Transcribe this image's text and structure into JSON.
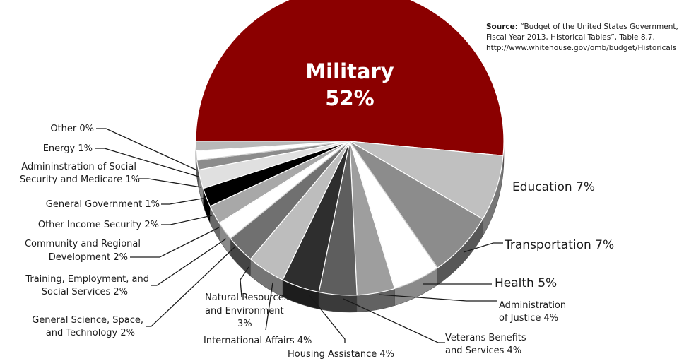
{
  "source": {
    "label": "Source:",
    "line1": "“Budget of the United States Government,",
    "line2": "Fiscal Year 2013, Historical Tables”, Table 8.7.",
    "line3": "http://www.whitehouse.gov/omb/budget/Historicals"
  },
  "chart_data": {
    "type": "pie",
    "title": "",
    "unit": "%",
    "slices": [
      {
        "label": "Military",
        "value": 52,
        "color": "#8b0000"
      },
      {
        "label": "Education",
        "value": 7,
        "color": "#c0c0c0"
      },
      {
        "label": "Transportation",
        "value": 7,
        "color": "#8c8c8c"
      },
      {
        "label": "Health",
        "value": 5,
        "color": "#ffffff"
      },
      {
        "label": "Administration of Justice",
        "value": 4,
        "color": "#9e9e9e"
      },
      {
        "label": "Veterans Benefits and Services",
        "value": 4,
        "color": "#5e5e5e"
      },
      {
        "label": "Housing Assistance",
        "value": 4,
        "color": "#2e2e2e"
      },
      {
        "label": "International Affairs",
        "value": 4,
        "color": "#bdbdbd"
      },
      {
        "label": "Natural Resources and Environment",
        "value": 3,
        "color": "#707070"
      },
      {
        "label": "General Science, Space, and Technology",
        "value": 2,
        "color": "#ffffff"
      },
      {
        "label": "Training, Employment, and Social Services",
        "value": 2,
        "color": "#a8a8a8"
      },
      {
        "label": "Community and Regional Development",
        "value": 2,
        "color": "#000000"
      },
      {
        "label": "Other Income Security",
        "value": 2,
        "color": "#e0e0e0"
      },
      {
        "label": "General Government",
        "value": 1,
        "color": "#8c8c8c"
      },
      {
        "label": "Administration of Social Security and Medicare",
        "value": 1,
        "color": "#ffffff"
      },
      {
        "label": "Energy",
        "value": 1,
        "color": "#b8b8b8"
      },
      {
        "label": "Other",
        "value": 0,
        "color": "#ffffff"
      }
    ],
    "label_texts": {
      "military_name": "Military",
      "military_pct": "52%",
      "education": "Education  7%",
      "transportation": "Transportation  7%",
      "health": "Health  5%",
      "justice_1": "Administration",
      "justice_2": "of Justice  4%",
      "veterans_1": "Veterans Benefits",
      "veterans_2": "and Services  4%",
      "housing": "Housing Assistance  4%",
      "international": "International Affairs  4%",
      "natural_1": "Natural Resources",
      "natural_2": "and  Environment",
      "natural_3": "3%",
      "science_1": "General Science, Space,",
      "science_2": "and Technology  2%",
      "training_1": "Training, Employment, and",
      "training_2": "Social Services  2%",
      "community_1": "Community and Regional",
      "community_2": "Development  2%",
      "income": "Other Income Security  2%",
      "government": "General Government  1%",
      "ssm_1": "Admininstration of Social",
      "ssm_2": "Security and Medicare  1%",
      "energy": "Energy  1%",
      "other": "Other  0%"
    }
  }
}
